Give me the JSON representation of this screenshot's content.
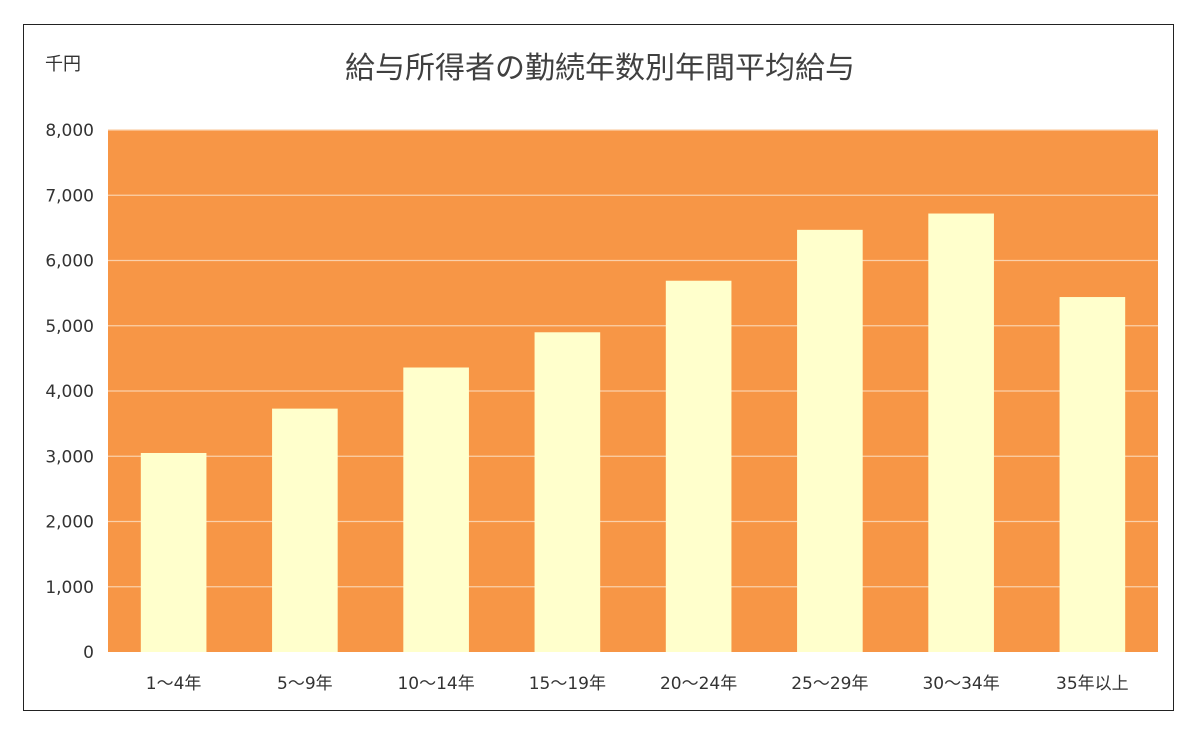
{
  "chart_data": {
    "type": "bar",
    "title": "給与所得者の勤続年数別年間平均給与",
    "unit_label": "千円",
    "categories": [
      "1〜4年",
      "5〜9年",
      "10〜14年",
      "15〜19年",
      "20〜24年",
      "25〜29年",
      "30〜34年",
      "35年以上"
    ],
    "values": [
      3050,
      3730,
      4360,
      4900,
      5690,
      6470,
      6720,
      5440
    ],
    "ylim": [
      0,
      8000
    ],
    "yticks": [
      0,
      1000,
      2000,
      3000,
      4000,
      5000,
      6000,
      7000,
      8000
    ],
    "ytick_labels": [
      "0",
      "1,000",
      "2,000",
      "3,000",
      "4,000",
      "5,000",
      "6,000",
      "7,000",
      "8,000"
    ],
    "grid": true,
    "colors": {
      "plot_background": "#f79646",
      "bar": "#ffffcc",
      "gridline": "#fbd0aa"
    }
  }
}
